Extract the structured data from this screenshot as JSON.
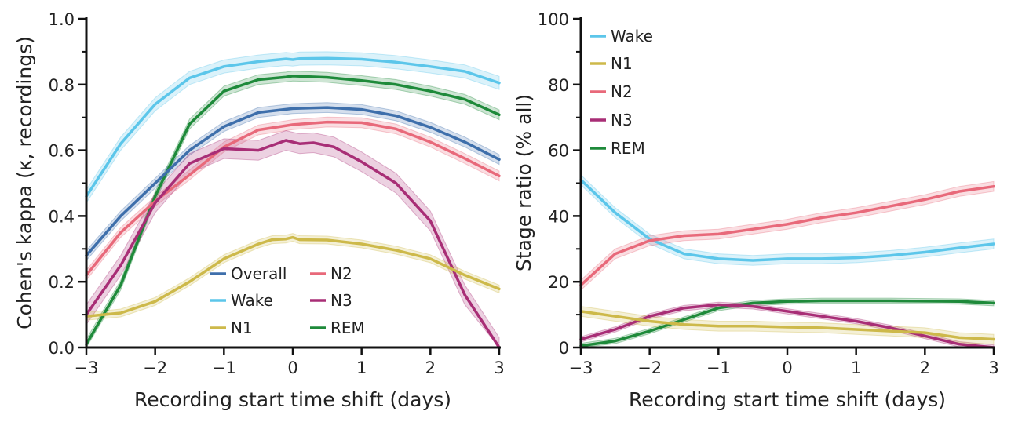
{
  "colors": {
    "Overall": "#3e6fab",
    "Wake": "#5cc6ea",
    "N1": "#cdb94a",
    "N2": "#e8697a",
    "N3": "#a82e76",
    "REM": "#1e8a3a",
    "axis": "#111111"
  },
  "chart_data": [
    {
      "type": "line",
      "xlabel": "Recording start time shift (days)",
      "ylabel": "Cohen's kappa (κ, recordings)",
      "xlim": [
        -3,
        3
      ],
      "ylim": [
        0,
        1
      ],
      "xticks": [
        -3,
        -2,
        -1,
        0,
        1,
        2,
        3
      ],
      "xtick_labels": [
        "−3",
        "−2",
        "−1",
        "0",
        "1",
        "2",
        "3"
      ],
      "yticks": [
        0,
        0.2,
        0.4,
        0.6,
        0.8,
        1.0
      ],
      "ytick_labels": [
        "0.0",
        "0.2",
        "0.4",
        "0.6",
        "0.8",
        "1.0"
      ],
      "legend": {
        "placement": "lower-center",
        "columns": 2,
        "entries": [
          "Overall",
          "Wake",
          "N1",
          "N2",
          "N3",
          "REM"
        ]
      },
      "series": [
        {
          "name": "Wake",
          "band": 0.02,
          "x": [
            -3,
            -2.5,
            -2,
            -1.5,
            -1,
            -0.5,
            -0.1,
            0,
            0.1,
            0.5,
            1,
            1.5,
            2,
            2.5,
            3
          ],
          "values": [
            0.46,
            0.62,
            0.74,
            0.82,
            0.855,
            0.87,
            0.878,
            0.876,
            0.879,
            0.88,
            0.877,
            0.868,
            0.855,
            0.84,
            0.805
          ]
        },
        {
          "name": "REM",
          "band": 0.015,
          "x": [
            -3,
            -2.5,
            -2,
            -1.5,
            -1,
            -0.5,
            -0.1,
            0,
            0.5,
            1,
            1.5,
            2,
            2.5,
            3
          ],
          "values": [
            0.01,
            0.19,
            0.46,
            0.68,
            0.78,
            0.815,
            0.823,
            0.826,
            0.822,
            0.812,
            0.8,
            0.78,
            0.755,
            0.708
          ]
        },
        {
          "name": "Overall",
          "band": 0.015,
          "x": [
            -3,
            -2.5,
            -2,
            -1.5,
            -1,
            -0.5,
            0,
            0.5,
            1,
            1.5,
            2,
            2.5,
            3
          ],
          "values": [
            0.28,
            0.4,
            0.5,
            0.6,
            0.672,
            0.715,
            0.727,
            0.73,
            0.724,
            0.705,
            0.67,
            0.625,
            0.572
          ]
        },
        {
          "name": "N2",
          "band": 0.015,
          "x": [
            -3,
            -2.5,
            -2,
            -1.5,
            -1,
            -0.5,
            0,
            0.5,
            1,
            1.5,
            2,
            2.5,
            3
          ],
          "values": [
            0.22,
            0.35,
            0.445,
            0.525,
            0.61,
            0.662,
            0.678,
            0.686,
            0.684,
            0.665,
            0.625,
            0.575,
            0.522
          ]
        },
        {
          "name": "N3",
          "band": 0.03,
          "x": [
            -3,
            -2.5,
            -2,
            -1.5,
            -1,
            -0.5,
            -0.1,
            0.1,
            0.3,
            0.6,
            1,
            1.5,
            2,
            2.5,
            3
          ],
          "values": [
            0.1,
            0.25,
            0.44,
            0.56,
            0.605,
            0.6,
            0.63,
            0.62,
            0.623,
            0.61,
            0.565,
            0.5,
            0.385,
            0.16,
            0.0
          ]
        },
        {
          "name": "N1",
          "band": 0.012,
          "x": [
            -3,
            -2.5,
            -2,
            -1.5,
            -1,
            -0.5,
            -0.3,
            -0.1,
            0,
            0.1,
            0.5,
            1,
            1.5,
            2,
            2.5,
            3
          ],
          "values": [
            0.095,
            0.105,
            0.14,
            0.2,
            0.27,
            0.315,
            0.328,
            0.33,
            0.335,
            0.328,
            0.327,
            0.315,
            0.296,
            0.27,
            0.22,
            0.178
          ]
        }
      ]
    },
    {
      "type": "line",
      "xlabel": "Recording start time shift (days)",
      "ylabel": "Stage ratio (% all)",
      "xlim": [
        -3,
        3
      ],
      "ylim": [
        0,
        100
      ],
      "xticks": [
        -3,
        -2,
        -1,
        0,
        1,
        2,
        3
      ],
      "xtick_labels": [
        "−3",
        "−2",
        "−1",
        "0",
        "1",
        "2",
        "3"
      ],
      "yticks": [
        0,
        20,
        40,
        60,
        80,
        100
      ],
      "ytick_labels": [
        "0",
        "20",
        "40",
        "60",
        "80",
        "100"
      ],
      "legend": {
        "placement": "top-left",
        "columns": 1,
        "entries": [
          "Wake",
          "N1",
          "N2",
          "N3",
          "REM"
        ]
      },
      "series": [
        {
          "name": "Wake",
          "band": 1.5,
          "x": [
            -3,
            -2.5,
            -2,
            -1.5,
            -1,
            -0.5,
            0,
            0.5,
            1,
            1.5,
            2,
            2.5,
            3
          ],
          "values": [
            51,
            41,
            33,
            28.5,
            27,
            26.5,
            27,
            27,
            27.3,
            28,
            29,
            30.3,
            31.5
          ]
        },
        {
          "name": "N2",
          "band": 1.5,
          "x": [
            -3,
            -2.5,
            -2,
            -1.5,
            -1,
            -0.5,
            0,
            0.5,
            1,
            1.5,
            2,
            2.5,
            3
          ],
          "values": [
            19,
            28.5,
            32.5,
            34,
            34.5,
            36,
            37.5,
            39.5,
            41,
            43,
            45,
            47.5,
            49
          ]
        },
        {
          "name": "REM",
          "band": 0.8,
          "x": [
            -3,
            -2.5,
            -2,
            -1.5,
            -1,
            -0.5,
            0,
            0.5,
            1,
            1.5,
            2,
            2.5,
            3
          ],
          "values": [
            0.5,
            2,
            5,
            8.5,
            12,
            13.5,
            14,
            14.2,
            14.2,
            14.2,
            14.1,
            14,
            13.5
          ]
        },
        {
          "name": "N3",
          "band": 0.8,
          "x": [
            -3,
            -2.5,
            -2,
            -1.5,
            -1,
            -0.5,
            0,
            0.5,
            1,
            1.5,
            2,
            2.5,
            3
          ],
          "values": [
            2.5,
            5.5,
            9.5,
            12,
            13,
            12.5,
            11,
            9.5,
            8,
            6,
            3.5,
            1,
            0
          ]
        },
        {
          "name": "N1",
          "band": 1.5,
          "x": [
            -3,
            -2.5,
            -2,
            -1.5,
            -1,
            -0.5,
            0,
            0.5,
            1,
            1.5,
            2,
            2.5,
            3
          ],
          "values": [
            11,
            9.5,
            8,
            7,
            6.5,
            6.5,
            6.2,
            6,
            5.5,
            5,
            4.5,
            3,
            2.5
          ]
        }
      ]
    }
  ]
}
